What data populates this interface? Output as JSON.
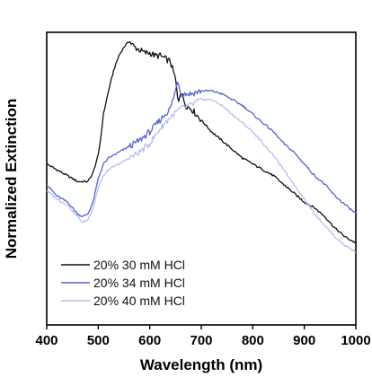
{
  "chart_data": {
    "type": "line",
    "title": "",
    "xlabel": "Wavelength (nm)",
    "ylabel": "Normalized Extinction",
    "xlim": [
      400,
      1000
    ],
    "ylim": [
      0,
      1
    ],
    "xticks": [
      400,
      500,
      600,
      700,
      800,
      900,
      1000
    ],
    "xtick_labels": [
      "400",
      "500",
      "600",
      "700",
      "800",
      "900",
      "1000"
    ],
    "y_ticks_labeled": false,
    "grid": false,
    "legend_position": "bottom-left",
    "series": [
      {
        "name": "20% 30 mM HCl",
        "color": "#111111",
        "x": [
          400,
          420,
          440,
          460,
          480,
          490,
          500,
          505,
          510,
          520,
          530,
          540,
          550,
          560,
          570,
          580,
          590,
          600,
          610,
          620,
          630,
          640,
          650,
          655,
          660,
          670,
          680,
          700,
          720,
          740,
          760,
          780,
          800,
          820,
          840,
          860,
          880,
          900,
          920,
          940,
          960,
          980,
          1000
        ],
        "y": [
          0.55,
          0.53,
          0.51,
          0.49,
          0.49,
          0.52,
          0.58,
          0.64,
          0.72,
          0.8,
          0.87,
          0.92,
          0.95,
          0.97,
          0.95,
          0.94,
          0.93,
          0.93,
          0.92,
          0.92,
          0.91,
          0.9,
          0.84,
          0.76,
          0.8,
          0.75,
          0.74,
          0.7,
          0.66,
          0.63,
          0.6,
          0.57,
          0.55,
          0.53,
          0.51,
          0.48,
          0.45,
          0.42,
          0.4,
          0.37,
          0.33,
          0.3,
          0.28
        ]
      },
      {
        "name": "20% 34 mM HCl",
        "color": "#5566cc",
        "x": [
          400,
          420,
          440,
          460,
          470,
          480,
          490,
          500,
          510,
          520,
          540,
          560,
          580,
          600,
          620,
          640,
          650,
          655,
          660,
          680,
          700,
          720,
          740,
          760,
          780,
          800,
          820,
          840,
          860,
          880,
          900,
          920,
          940,
          960,
          980,
          1000
        ],
        "y": [
          0.48,
          0.44,
          0.42,
          0.38,
          0.37,
          0.38,
          0.42,
          0.5,
          0.55,
          0.57,
          0.59,
          0.61,
          0.63,
          0.66,
          0.7,
          0.74,
          0.8,
          0.84,
          0.79,
          0.79,
          0.8,
          0.8,
          0.79,
          0.77,
          0.75,
          0.72,
          0.69,
          0.66,
          0.62,
          0.59,
          0.55,
          0.51,
          0.48,
          0.44,
          0.41,
          0.38
        ]
      },
      {
        "name": "20% 40 mM HCl",
        "color": "#b8c0ee",
        "x": [
          400,
          420,
          440,
          460,
          470,
          480,
          490,
          500,
          510,
          520,
          540,
          560,
          580,
          600,
          620,
          640,
          660,
          680,
          700,
          720,
          740,
          760,
          780,
          800,
          820,
          840,
          860,
          880,
          900,
          920,
          940,
          960,
          980,
          1000
        ],
        "y": [
          0.46,
          0.43,
          0.41,
          0.37,
          0.35,
          0.36,
          0.4,
          0.47,
          0.51,
          0.53,
          0.55,
          0.57,
          0.59,
          0.62,
          0.67,
          0.71,
          0.74,
          0.75,
          0.77,
          0.77,
          0.75,
          0.72,
          0.69,
          0.66,
          0.62,
          0.58,
          0.53,
          0.48,
          0.43,
          0.38,
          0.34,
          0.3,
          0.27,
          0.25
        ]
      }
    ]
  }
}
